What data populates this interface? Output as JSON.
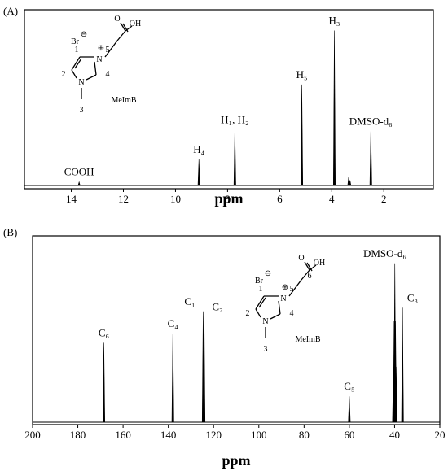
{
  "chart_data": [
    {
      "type": "spectrum",
      "panel_label": "(A)",
      "xlabel": "ppm",
      "xlim": [
        15.8,
        0.1
      ],
      "xticks": [
        14,
        12,
        10,
        8,
        6,
        4,
        2
      ],
      "ylim": [
        0,
        1
      ],
      "x": [
        13.7,
        9.1,
        7.72,
        5.15,
        3.9,
        3.35,
        3.3,
        2.5
      ],
      "values": [
        0.02,
        0.15,
        0.32,
        0.58,
        0.89,
        0.05,
        0.03,
        0.31
      ],
      "peak_labels": [
        "COOH",
        "H₄",
        "H₁, H₂",
        "H₅",
        "H₃",
        null,
        null,
        "DMSO-d₆"
      ],
      "color": "#000000",
      "inset_labels": [
        "Br",
        "⊖",
        "O",
        "OH",
        "N",
        "⊕",
        "N",
        "1",
        "2",
        "3",
        "4",
        "5",
        "MeImB"
      ]
    },
    {
      "type": "spectrum",
      "panel_label": "(B)",
      "xlabel": "ppm",
      "xlim": [
        200,
        20
      ],
      "xticks": [
        200,
        180,
        160,
        140,
        120,
        100,
        80,
        60,
        40,
        20
      ],
      "ylim": [
        0,
        1
      ],
      "x": [
        168.5,
        138,
        124.6,
        124.2,
        60,
        40.5,
        40.2,
        39.9,
        39.6,
        39.3,
        36.5
      ],
      "values": [
        0.43,
        0.48,
        0.6,
        0.57,
        0.14,
        0.3,
        0.55,
        0.86,
        0.55,
        0.3,
        0.62
      ],
      "peak_labels": [
        "C₆",
        "C₄",
        "C₁",
        "C₂",
        "C₅",
        null,
        null,
        "DMSO-d₆",
        null,
        null,
        "C₃"
      ],
      "color": "#000000",
      "inset_labels": [
        "Br",
        "⊖",
        "O",
        "OH",
        "N",
        "⊕",
        "N",
        "1",
        "2",
        "3",
        "4",
        "5",
        "MeImB",
        "6"
      ]
    }
  ]
}
